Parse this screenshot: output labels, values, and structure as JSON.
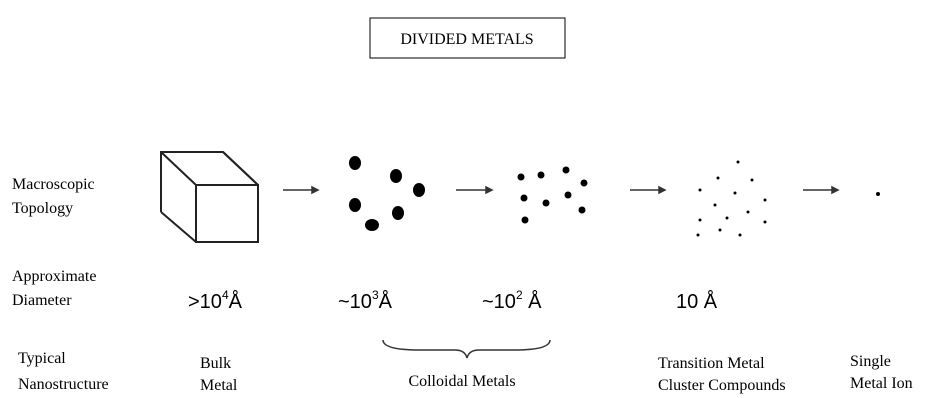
{
  "title": "DIVIDED METALS",
  "row_labels": {
    "topology": [
      "Macroscopic",
      "Topology"
    ],
    "diameter": [
      "Approximate",
      "Diameter"
    ],
    "nanostructure": [
      "Typical",
      "Nanostructure"
    ]
  },
  "diameters": [
    {
      "text": ">10",
      "sup": "4",
      "after": "Å"
    },
    {
      "text": "~10",
      "sup": "3",
      "after": "Å"
    },
    {
      "text": "~10",
      "sup": "2",
      "after": " Å"
    },
    {
      "text": "10 Å"
    }
  ],
  "nanostructures": [
    [
      "Bulk",
      "Metal"
    ],
    [
      "Colloidal Metals"
    ],
    [
      "Transition Metal",
      "Cluster Compounds"
    ],
    [
      "Single",
      "Metal Ion"
    ]
  ]
}
